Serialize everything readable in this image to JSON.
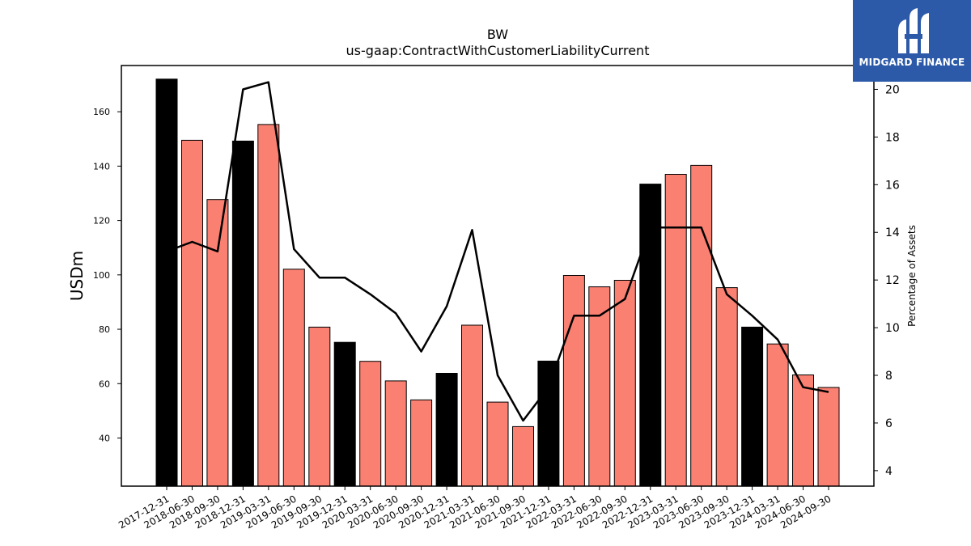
{
  "chart_data": {
    "type": "bar",
    "title": "BW",
    "subtitle": "us-gaap:ContractWithCustomerLiabilityCurrent",
    "ylabel": "USDm",
    "y2label": "Percentage of Assets",
    "categories": [
      "2017-12-31",
      "2018-06-30",
      "2018-09-30",
      "2018-12-31",
      "2019-03-31",
      "2019-06-30",
      "2019-09-30",
      "2019-12-31",
      "2020-03-31",
      "2020-06-30",
      "2020-09-30",
      "2020-12-31",
      "2021-03-31",
      "2021-06-30",
      "2021-09-30",
      "2021-12-31",
      "2022-03-31",
      "2022-06-30",
      "2022-09-30",
      "2022-12-31",
      "2023-03-31",
      "2023-06-30",
      "2023-09-30",
      "2023-12-31",
      "2024-03-31",
      "2024-06-30",
      "2024-09-30"
    ],
    "series": [
      {
        "kind": "bar",
        "values": [
          172,
          149.5,
          127.7,
          149.2,
          155.3,
          102.1,
          80.8,
          75.2,
          68.2,
          61,
          54,
          63.8,
          81.5,
          53.2,
          44.2,
          68.3,
          99.8,
          95.6,
          98,
          133.4,
          137,
          140.3,
          95.3,
          80.8,
          74.6,
          63.2,
          58.6
        ],
        "annual": [
          true,
          false,
          false,
          true,
          false,
          false,
          false,
          true,
          false,
          false,
          false,
          true,
          false,
          false,
          false,
          true,
          false,
          false,
          false,
          true,
          false,
          false,
          false,
          true,
          false,
          false,
          false
        ]
      },
      {
        "kind": "line",
        "axis": "right",
        "values": [
          13.2,
          13.6,
          13.2,
          20,
          20.3,
          13.3,
          12.1,
          12.1,
          11.4,
          10.6,
          9,
          10.9,
          14.1,
          8,
          6.1,
          7.5,
          10.5,
          10.5,
          11.2,
          14.2,
          14.2,
          14.2,
          11.4,
          10.5,
          9.5,
          7.5,
          7.3
        ]
      }
    ],
    "ylim": [
      22.3,
      177
    ],
    "y2lim": [
      3.35,
      21.0
    ],
    "yticks": [
      40,
      60,
      80,
      100,
      120,
      140,
      160
    ],
    "y2ticks": [
      4,
      6,
      8,
      10,
      12,
      14,
      16,
      18,
      20
    ],
    "colors": {
      "annual_bar": "#000000",
      "quarter_bar": "#fa8072",
      "line": "#000000"
    },
    "grid": false
  },
  "logo": {
    "text": "MIDGARD FINANCE"
  }
}
